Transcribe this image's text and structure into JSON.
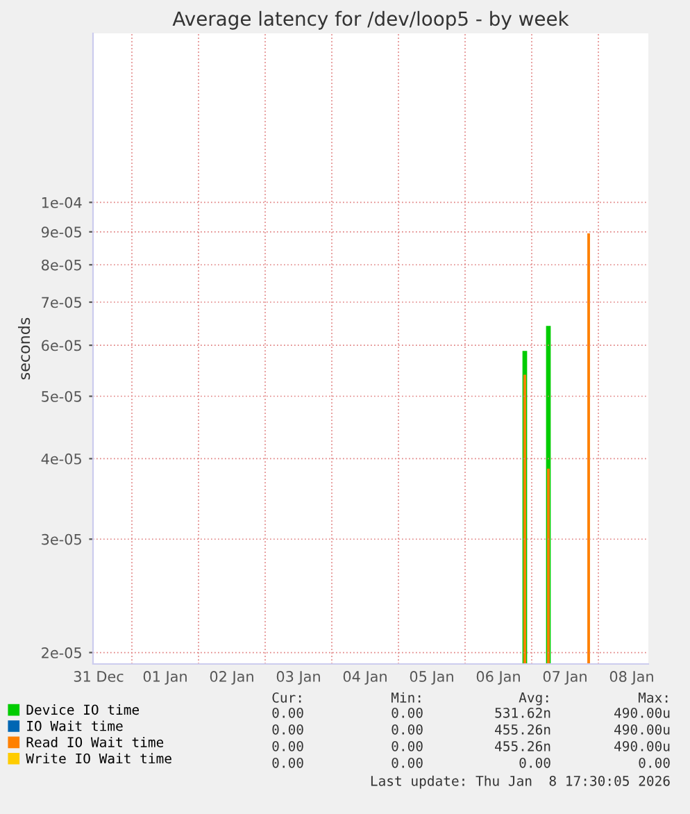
{
  "chart_data": {
    "type": "bar",
    "title": "Average latency for /dev/loop5 - by week",
    "ylabel": "seconds",
    "log": true,
    "grid": true,
    "legend": "bottom",
    "xlim": [
      "2025-12-31T10:00",
      "2026-01-08T18:00"
    ],
    "xticks": [
      {
        "value": "2025-12-31T12:00",
        "label": "31 Dec"
      },
      {
        "value": "2026-01-01T00:00",
        "label": null
      },
      {
        "value": "2026-01-01T12:00",
        "label": "01 Jan"
      },
      {
        "value": "2026-01-02T00:00",
        "label": null
      },
      {
        "value": "2026-01-02T12:00",
        "label": "02 Jan"
      },
      {
        "value": "2026-01-03T00:00",
        "label": null
      },
      {
        "value": "2026-01-03T12:00",
        "label": "03 Jan"
      },
      {
        "value": "2026-01-04T00:00",
        "label": null
      },
      {
        "value": "2026-01-04T12:00",
        "label": "04 Jan"
      },
      {
        "value": "2026-01-05T00:00",
        "label": null
      },
      {
        "value": "2026-01-05T12:00",
        "label": "05 Jan"
      },
      {
        "value": "2026-01-06T00:00",
        "label": null
      },
      {
        "value": "2026-01-06T12:00",
        "label": "06 Jan"
      },
      {
        "value": "2026-01-07T00:00",
        "label": null
      },
      {
        "value": "2026-01-07T12:00",
        "label": "07 Jan"
      },
      {
        "value": "2026-01-08T00:00",
        "label": null
      },
      {
        "value": "2026-01-08T12:00",
        "label": "08 Jan"
      }
    ],
    "ylim": [
      1.92e-05,
      0.000183
    ],
    "yticks": [
      {
        "value": 2e-05,
        "label": "2e-05"
      },
      {
        "value": 3e-05,
        "label": "3e-05"
      },
      {
        "value": 4e-05,
        "label": "4e-05"
      },
      {
        "value": 5e-05,
        "label": "5e-05"
      },
      {
        "value": 6e-05,
        "label": "6e-05"
      },
      {
        "value": 7e-05,
        "label": "7e-05"
      },
      {
        "value": 8e-05,
        "label": "8e-05"
      },
      {
        "value": 9e-05,
        "label": "9e-05"
      },
      {
        "value": 0.0001,
        "label": "1e-04"
      }
    ],
    "series": [
      {
        "name": "Device IO time",
        "color": "#00cc00",
        "x": [
          "2026-01-06T21:30",
          "2026-01-07T06:00"
        ],
        "values": [
          5.88e-05,
          6.43e-05
        ]
      },
      {
        "name": "IO Wait time",
        "color": "#0066b3"
      },
      {
        "name": "Read IO Wait time",
        "color": "#ff8000",
        "x": [
          "2026-01-06T21:30",
          "2026-01-07T06:00",
          "2026-01-07T20:30"
        ],
        "values": [
          5.4e-05,
          3.86e-05,
          8.95e-05
        ]
      },
      {
        "name": "Write IO Wait time",
        "color": "#ffcc00"
      }
    ],
    "annotations": [
      "Cur:",
      "Min:",
      "Avg:",
      "Max:",
      "0.00",
      "0.00",
      "531.62n",
      "490.00u",
      "0.00",
      "0.00",
      "455.26n",
      "490.00u",
      "0.00",
      "0.00",
      "455.26n",
      "490.00u",
      "0.00",
      "0.00",
      "0.00",
      "0.00",
      "Last update: Thu Jan  8 17:30:05 2026"
    ]
  }
}
